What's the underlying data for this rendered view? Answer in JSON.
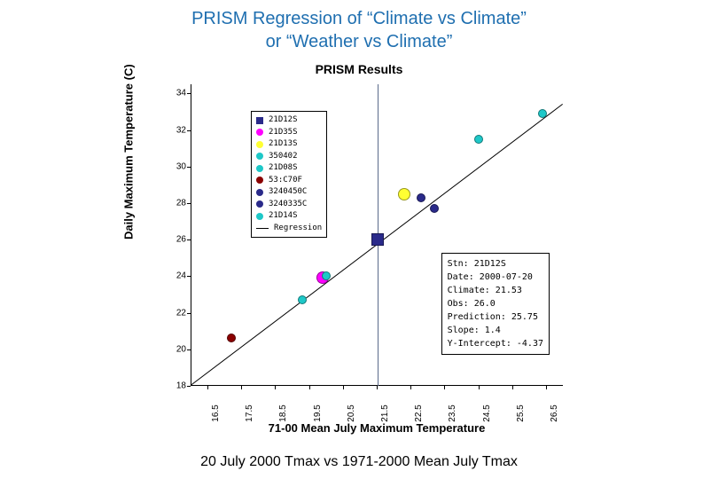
{
  "slide": {
    "title_l1": "PRISM Regression of “Climate vs Climate”",
    "title_l2": "or “Weather vs Climate”",
    "caption": "20 July 2000 Tmax vs 1971-2000 Mean July Tmax"
  },
  "chart": {
    "title": "PRISM Results",
    "xlabel": "71-00 Mean July Maximum Temperature",
    "ylabel": "Daily Maximum Temperature (C)",
    "xlim": [
      16,
      27
    ],
    "ylim": [
      18,
      34.5
    ],
    "yticks": [
      18,
      20,
      22,
      24,
      26,
      28,
      30,
      32,
      34
    ],
    "xticks": [
      16.5,
      17.5,
      18.5,
      19.5,
      20.5,
      21.5,
      22.5,
      23.5,
      24.5,
      25.5,
      26.5
    ],
    "background": "#ffffff",
    "vline_x": 21.53,
    "vline_color": "#5a6a8a",
    "regression": {
      "slope": 1.4,
      "intercept": -4.37,
      "color": "#000000",
      "width": 1
    },
    "marker_size": 8,
    "big_marker_size": 12,
    "series": [
      {
        "id": "21D12S",
        "shape": "square",
        "color": "#2a2a8a",
        "x": 21.53,
        "y": 26.0,
        "big": true
      },
      {
        "id": "21D35S",
        "shape": "circle",
        "color": "#ff00ff",
        "x": 19.9,
        "y": 23.9,
        "big": true
      },
      {
        "id": "21D13S",
        "shape": "circle",
        "color": "#ffff33",
        "x": 22.3,
        "y": 28.5,
        "big": true
      },
      {
        "id": "350402",
        "shape": "circle",
        "color": "#1ec8c8",
        "x": 20.0,
        "y": 24.0
      },
      {
        "id": "21D08S",
        "shape": "circle",
        "color": "#1ec8c8",
        "x": 19.3,
        "y": 22.7
      },
      {
        "id": "53:C70F",
        "shape": "circle",
        "color": "#8b0000",
        "x": 17.2,
        "y": 20.6
      },
      {
        "id": "3240450C",
        "shape": "circle",
        "color": "#2a2a8a",
        "x": 23.2,
        "y": 27.7
      },
      {
        "id": "3240335C",
        "shape": "circle",
        "color": "#2a2a8a",
        "x": 22.8,
        "y": 28.3
      },
      {
        "id": "21D14S_a",
        "shape": "circle",
        "color": "#1ec8c8",
        "x": 24.5,
        "y": 31.5
      },
      {
        "id": "21D14S_b",
        "shape": "circle",
        "color": "#1ec8c8",
        "x": 26.4,
        "y": 32.9
      }
    ],
    "legend": [
      {
        "label": "21D12S",
        "shape": "square",
        "color": "#2a2a8a"
      },
      {
        "label": "21D35S",
        "shape": "circle",
        "color": "#ff00ff"
      },
      {
        "label": "21D13S",
        "shape": "circle",
        "color": "#ffff33"
      },
      {
        "label": "350402",
        "shape": "circle",
        "color": "#1ec8c8"
      },
      {
        "label": "21D08S",
        "shape": "circle",
        "color": "#1ec8c8"
      },
      {
        "label": "53:C70F",
        "shape": "circle",
        "color": "#8b0000"
      },
      {
        "label": "3240450C",
        "shape": "circle",
        "color": "#2a2a8a"
      },
      {
        "label": "3240335C",
        "shape": "circle",
        "color": "#2a2a8a"
      },
      {
        "label": "21D14S",
        "shape": "circle",
        "color": "#1ec8c8"
      },
      {
        "label": "Regression",
        "shape": "line",
        "color": "#000000"
      }
    ],
    "info": {
      "stn": "Stn: 21D12S",
      "date": "Date: 2000-07-20",
      "climate": "Climate: 21.53",
      "obs": "Obs: 26.0",
      "pred": "Prediction: 25.75",
      "slope": "Slope: 1.4",
      "yint": "Y-Intercept: -4.37"
    }
  }
}
